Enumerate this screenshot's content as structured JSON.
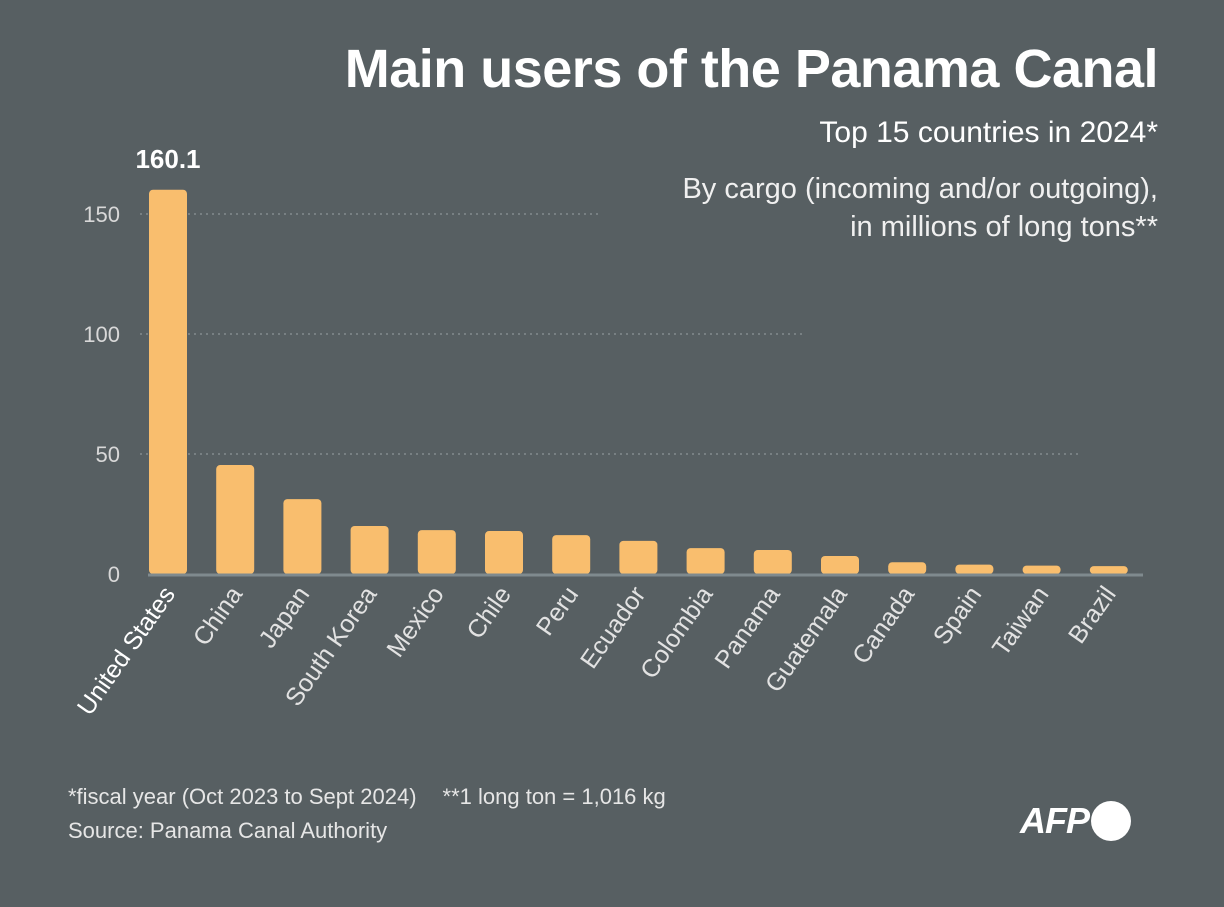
{
  "title": "Main users of the Panama Canal",
  "subtitle": "Top 15 countries in 2024*",
  "description": [
    "By cargo (incoming and/or outgoing),",
    "in millions of long tons**"
  ],
  "footnotes": [
    "*fiscal year (Oct 2023 to Sept 2024)",
    "**1 long ton = 1,016 kg"
  ],
  "source": "Source: Panama Canal Authority",
  "logo": "AFP",
  "chart_data": {
    "type": "bar",
    "categories": [
      "United States",
      "China",
      "Japan",
      "South Korea",
      "Mexico",
      "Chile",
      "Peru",
      "Ecuador",
      "Colombia",
      "Panama",
      "Guatemala",
      "Canada",
      "Spain",
      "Taiwan",
      "Brazil"
    ],
    "values": [
      160.1,
      45.4,
      31.2,
      20.0,
      18.3,
      17.9,
      16.2,
      13.8,
      10.8,
      10.0,
      7.5,
      4.9,
      3.9,
      3.5,
      3.3
    ],
    "data_labels": {
      "United States": "160.1"
    },
    "yticks": [
      0,
      50,
      100,
      150
    ],
    "ylim": [
      0,
      165
    ],
    "grid": true,
    "bar_color": "#f9be6e",
    "background": "#575f62"
  }
}
